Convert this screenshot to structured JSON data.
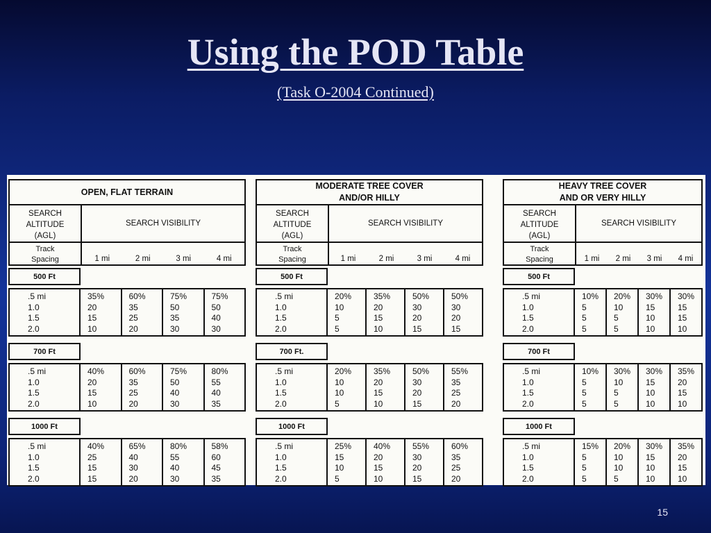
{
  "slide": {
    "title": "Using the POD Table",
    "subtitle": "(Task O-2004 Continued)",
    "page_number": "15"
  },
  "table": {
    "altitude_header": [
      "SEARCH",
      "ALTITUDE",
      "(AGL)"
    ],
    "track_spacing_header": [
      "Track",
      "Spacing"
    ],
    "visibility_header": "SEARCH VISIBILITY",
    "visibility_columns": [
      "1 mi",
      "2 mi",
      "3 mi",
      "4 mi"
    ],
    "track_spacings": [
      ".5 mi",
      "1.0",
      "1.5",
      "2.0"
    ],
    "panels": [
      {
        "terrain": [
          "OPEN, FLAT TERRAIN"
        ],
        "altitudes": [
          {
            "label": "500 Ft",
            "rows": [
              [
                "35%",
                "60%",
                "75%",
                "75%"
              ],
              [
                "20",
                "35",
                "50",
                "50"
              ],
              [
                "15",
                "25",
                "35",
                "40"
              ],
              [
                "10",
                "20",
                "30",
                "30"
              ]
            ]
          },
          {
            "label": "700 Ft",
            "rows": [
              [
                "40%",
                "60%",
                "75%",
                "80%"
              ],
              [
                "20",
                "35",
                "50",
                "55"
              ],
              [
                "15",
                "25",
                "40",
                "40"
              ],
              [
                "10",
                "20",
                "30",
                "35"
              ]
            ]
          },
          {
            "label": "1000 Ft",
            "rows": [
              [
                "40%",
                "65%",
                "80%",
                "58%"
              ],
              [
                "25",
                "40",
                "55",
                "60"
              ],
              [
                "15",
                "30",
                "40",
                "45"
              ],
              [
                "15",
                "20",
                "30",
                "35"
              ]
            ]
          }
        ]
      },
      {
        "terrain": [
          "MODERATE TREE COVER",
          "AND/OR HILLY"
        ],
        "altitudes": [
          {
            "label": "500 Ft",
            "rows": [
              [
                "20%",
                "35%",
                "50%",
                "50%"
              ],
              [
                "10",
                "20",
                "30",
                "30"
              ],
              [
                "5",
                "15",
                "20",
                "20"
              ],
              [
                "5",
                "10",
                "15",
                "15"
              ]
            ]
          },
          {
            "label": "700 Ft.",
            "rows": [
              [
                "20%",
                "35%",
                "50%",
                "55%"
              ],
              [
                "10",
                "20",
                "30",
                "35"
              ],
              [
                "10",
                "15",
                "20",
                "25"
              ],
              [
                "5",
                "10",
                "15",
                "20"
              ]
            ]
          },
          {
            "label": "1000 Ft",
            "rows": [
              [
                "25%",
                "40%",
                "55%",
                "60%"
              ],
              [
                "15",
                "20",
                "30",
                "35"
              ],
              [
                "10",
                "15",
                "20",
                "25"
              ],
              [
                "5",
                "10",
                "15",
                "20"
              ]
            ]
          }
        ]
      },
      {
        "terrain": [
          "HEAVY TREE COVER",
          "AND OR VERY HILLY"
        ],
        "altitudes": [
          {
            "label": "700 Ft",
            "rows": [
              [
                "10%",
                "30%",
                "30%",
                "35%"
              ],
              [
                "5",
                "10",
                "15",
                "20"
              ],
              [
                "5",
                "5",
                "10",
                "15"
              ],
              [
                "5",
                "5",
                "10",
                "10"
              ]
            ]
          },
          {
            "label": "500 Ft",
            "rows": [
              [
                "10%",
                "20%",
                "30%",
                "30%"
              ],
              [
                "5",
                "10",
                "15",
                "15"
              ],
              [
                "5",
                "5",
                "10",
                "15"
              ],
              [
                "5",
                "5",
                "10",
                "10"
              ]
            ]
          },
          {
            "label": "1000 Ft",
            "rows": [
              [
                "15%",
                "20%",
                "30%",
                "35%"
              ],
              [
                "5",
                "10",
                "15",
                "20"
              ],
              [
                "5",
                "10",
                "10",
                "15"
              ],
              [
                "5",
                "5",
                "10",
                "10"
              ]
            ]
          }
        ]
      }
    ]
  }
}
